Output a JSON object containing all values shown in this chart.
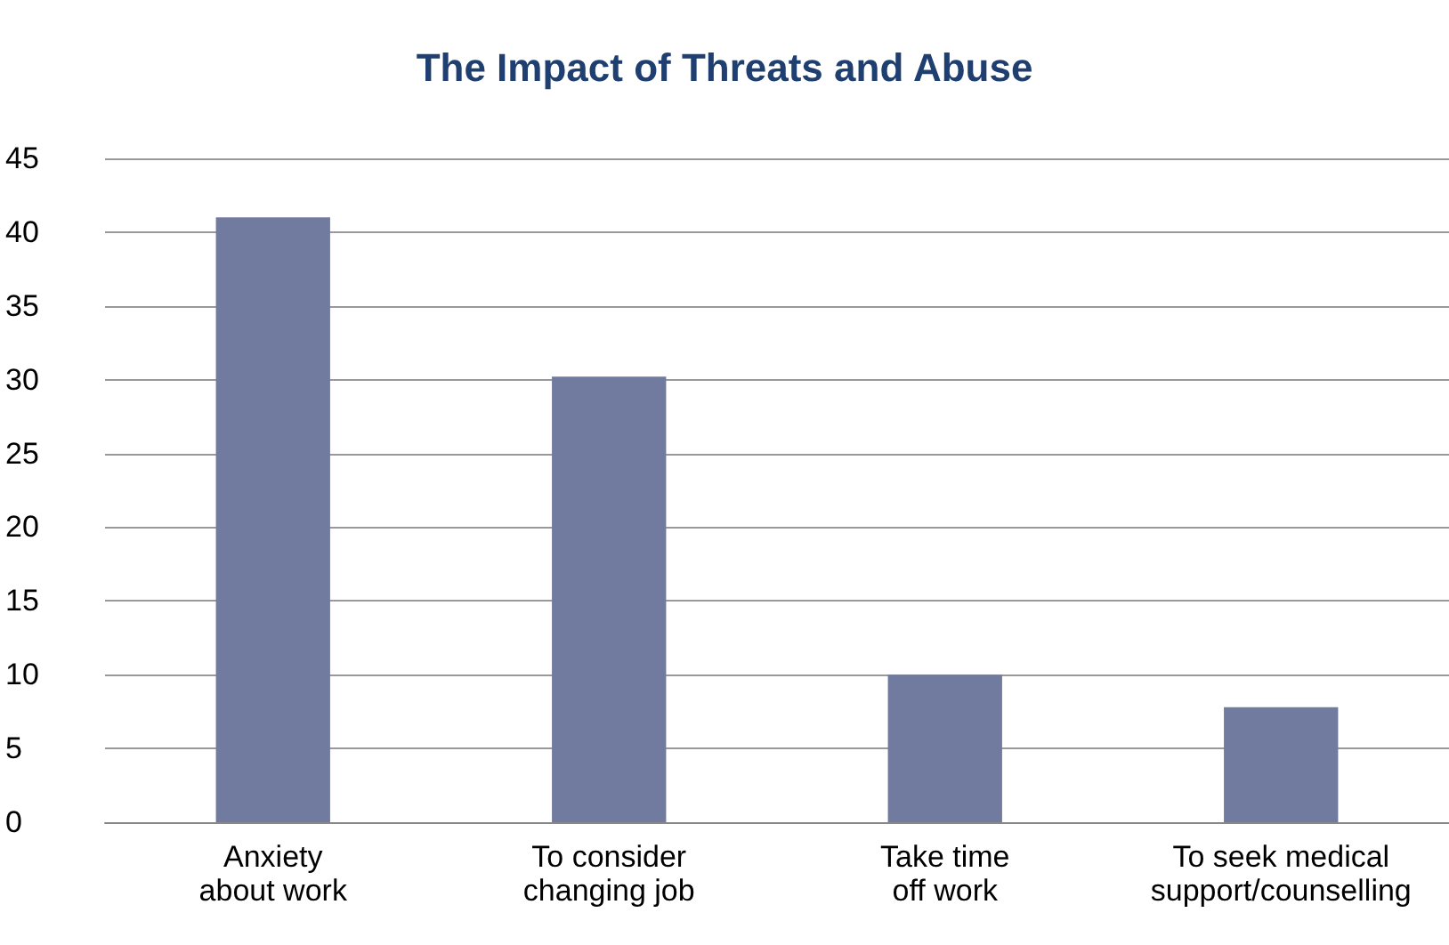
{
  "chart_data": {
    "type": "bar",
    "title": "The Impact of Threats and Abuse",
    "categories": [
      "Anxiety\nabout work",
      "To consider\nchanging job",
      "Take time\noff work",
      "To seek medical\nsupport/counselling"
    ],
    "values": [
      41,
      30.2,
      10,
      7.8
    ],
    "color": "#717b9f",
    "ylim": [
      0,
      45
    ],
    "yticks": [
      0,
      5,
      10,
      15,
      20,
      25,
      30,
      35,
      40,
      45
    ],
    "grid": "y"
  }
}
